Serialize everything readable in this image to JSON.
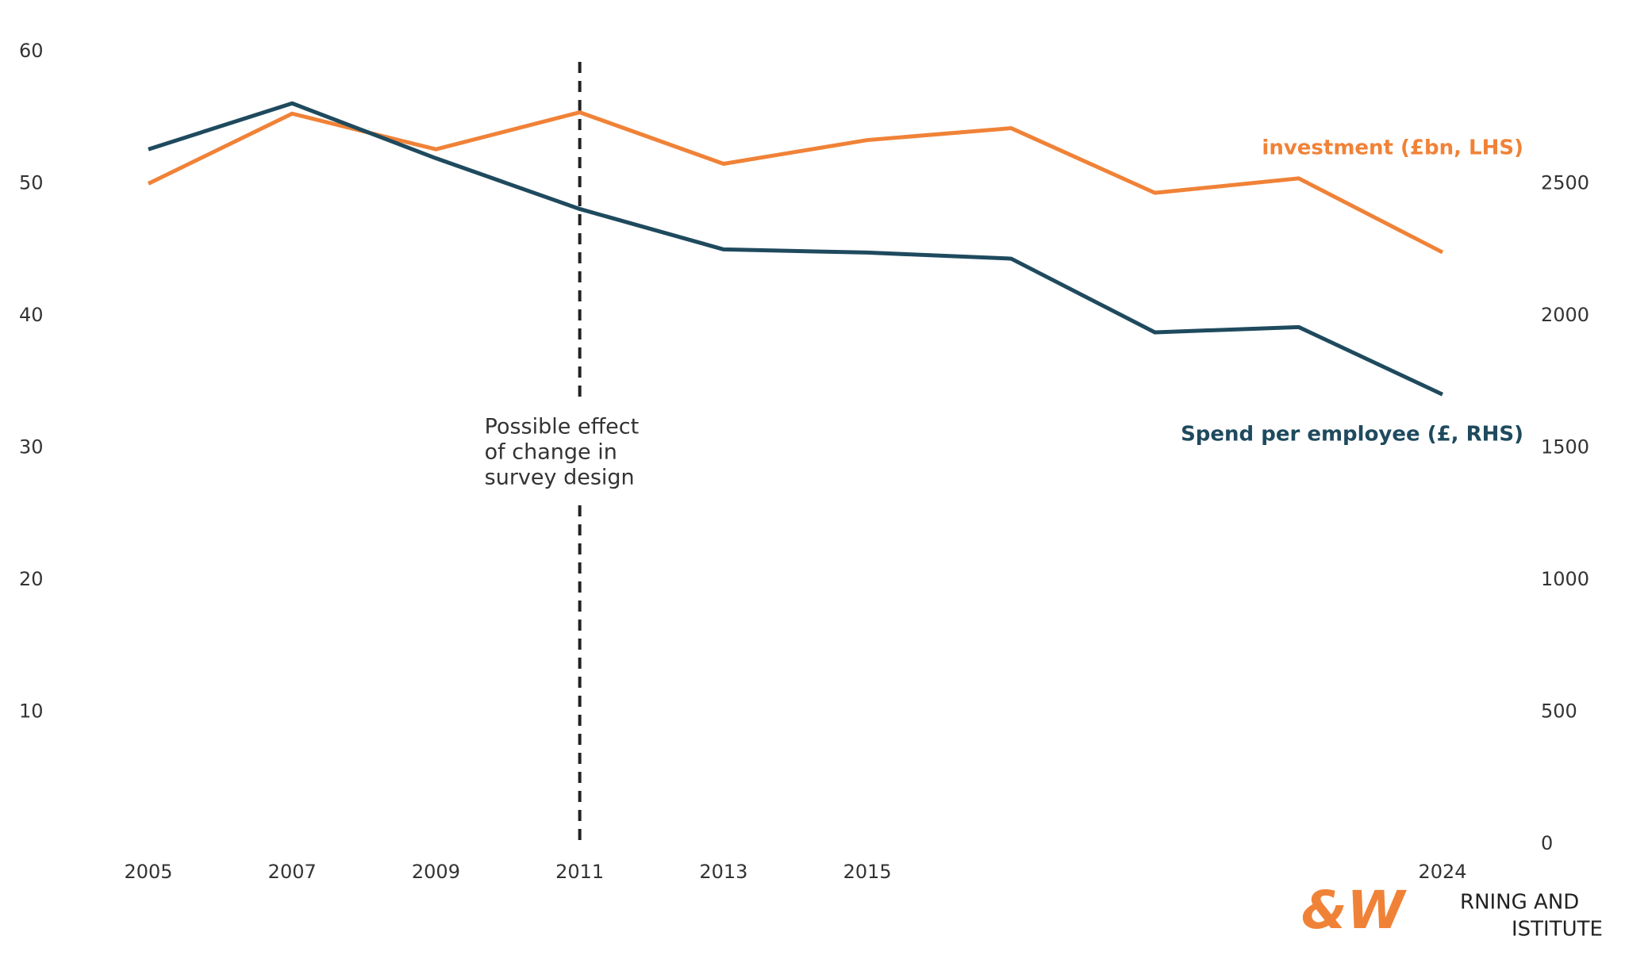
{
  "chart_data": {
    "type": "line",
    "categories": [
      "2005",
      "2007",
      "2009",
      "2011",
      "2013",
      "2015",
      null,
      null,
      null,
      "2024"
    ],
    "series": [
      {
        "name": "investment (£bn, LHS)",
        "color": "#f08237",
        "values": [
          50.0,
          55.3,
          52.6,
          55.4,
          51.5,
          53.3,
          54.2,
          49.3,
          50.4,
          44.8
        ]
      },
      {
        "name": "Spend per employee (£, RHS)",
        "color": "#1f4a5e",
        "axis": "y2",
        "values": [
          2630,
          2804,
          2596,
          2404,
          2251,
          2239,
          2216,
          1937,
          1957,
          1702
        ]
      }
    ],
    "ylim": [
      0,
      60
    ],
    "yticks": [
      10,
      20,
      30,
      40,
      50,
      60
    ],
    "y2lim": [
      0,
      3000
    ],
    "y2ticks": [
      0,
      500,
      1000,
      1500,
      2000,
      2500
    ],
    "annotation": {
      "x": "2011",
      "lines": [
        "Possible effect",
        "of change in",
        "survey design"
      ]
    }
  },
  "logo": {
    "mark": "&W",
    "lines": [
      "RNING AND",
      "ISTITUTE"
    ]
  }
}
